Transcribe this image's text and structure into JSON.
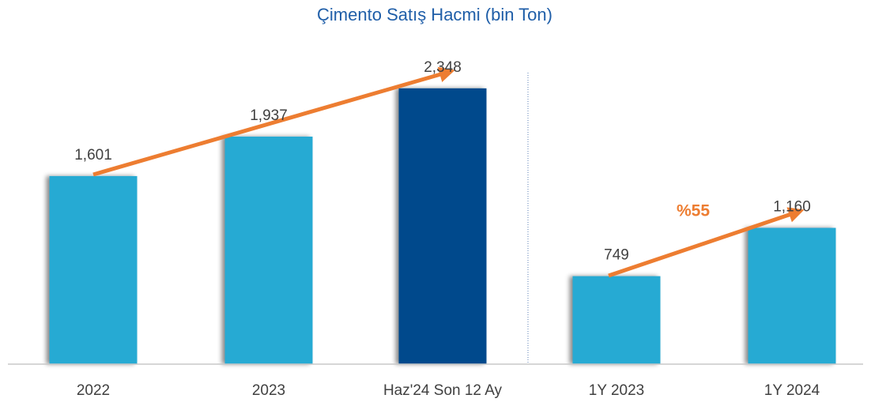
{
  "chart_data": {
    "type": "bar",
    "title": "Çimento Satış Hacmi (bin Ton)",
    "categories": [
      "2022",
      "2023",
      "Haz'24 Son 12 Ay",
      "1Y 2023",
      "1Y 2024"
    ],
    "values": [
      1601,
      1937,
      2348,
      749,
      1160
    ],
    "value_labels": [
      "1,601",
      "1,937",
      "2,348",
      "749",
      "1,160"
    ],
    "colors": [
      "#27aad3",
      "#27aad3",
      "#004a8c",
      "#27aad3",
      "#27aad3"
    ],
    "annotations": [
      "%55"
    ],
    "ylim": [
      0,
      3100
    ]
  }
}
